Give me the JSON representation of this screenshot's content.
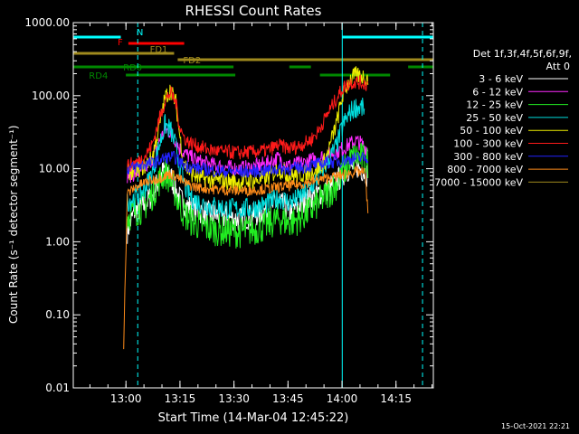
{
  "chart_data": {
    "type": "line",
    "title": "RHESSI Count Rates",
    "xlabel": "Start Time (14-Mar-04 12:45:22)",
    "ylabel": "Count Rate (s⁻¹ detector segment⁻¹)",
    "yscale": "log",
    "ylim": [
      0.01,
      1000
    ],
    "xlim_minutes_after_start": [
      0,
      100
    ],
    "x_tick_labels": [
      "13:00",
      "13:15",
      "13:30",
      "13:45",
      "14:00",
      "14:15"
    ],
    "x_tick_minutes_after_start": [
      14.63,
      29.63,
      44.63,
      59.63,
      74.63,
      89.63
    ],
    "y_tick_labels": [
      "0.01",
      "0.10",
      "1.00",
      "10.00",
      "100.00",
      "1000.00"
    ],
    "y_tick_values": [
      0.01,
      0.1,
      1,
      10,
      100,
      1000
    ],
    "legend_title": "Det 1f,3f,4f,5f,6f,9f,",
    "legend_subtitle": "Att 0",
    "legend_position": "right",
    "timestamp": "15-Oct-2021 22:21",
    "annotations": [
      "N",
      "F",
      "FD1",
      "FD2",
      "RD0",
      "RD4"
    ],
    "x_sample_minutes": [
      0,
      1.5,
      3,
      5,
      7,
      10,
      12,
      14,
      15,
      17,
      18.5,
      20,
      22,
      24,
      25.5,
      27,
      28.5,
      29.5,
      30.5,
      31.5,
      33,
      35,
      38,
      42,
      46,
      50,
      54,
      57,
      60,
      62,
      64,
      66,
      68,
      70,
      73,
      75,
      77,
      78.5,
      80,
      81,
      82,
      83,
      85,
      87,
      88,
      90,
      93,
      96,
      100
    ],
    "series": [
      {
        "name": "3 - 6 keV",
        "color": "#ffffff",
        "start_min": 13.5,
        "end_min": 83,
        "values": [
          null,
          null,
          null,
          null,
          null,
          null,
          null,
          null,
          1.4,
          2.6,
          2.8,
          3.2,
          4.5,
          7.5,
          10,
          8,
          5,
          4,
          3.4,
          3.1,
          2.9,
          2.6,
          2.4,
          2.2,
          2.0,
          2.3,
          2.7,
          3.6,
          2.5,
          3.0,
          3.4,
          4.0,
          4.5,
          5.0,
          6.5,
          8.5,
          10.5,
          11,
          10,
          9,
          8,
          null,
          null,
          null,
          null,
          null,
          null,
          null,
          null
        ]
      },
      {
        "name": "6 - 12 keV",
        "color": "#ff2bff",
        "start_min": 13.5,
        "end_min": 83,
        "values": [
          null,
          null,
          null,
          null,
          null,
          null,
          null,
          null,
          8,
          8.5,
          9,
          10,
          14,
          24,
          34,
          32,
          24,
          19,
          17,
          15.5,
          14,
          12.5,
          11.5,
          10.5,
          10,
          10.5,
          12,
          14,
          11,
          11.5,
          12,
          13,
          14,
          15,
          17,
          19,
          22,
          24,
          22,
          20,
          18,
          null,
          null,
          null,
          null,
          null,
          null,
          null,
          null
        ]
      },
      {
        "name": "12 - 25 keV",
        "color": "#22ee22",
        "start_min": 13.5,
        "end_min": 83,
        "values": [
          null,
          null,
          null,
          null,
          null,
          null,
          null,
          null,
          2.2,
          2.6,
          2.8,
          3.2,
          4.5,
          7,
          9,
          7,
          4.5,
          3.2,
          2.6,
          2.2,
          1.9,
          1.7,
          1.5,
          1.4,
          1.35,
          1.45,
          1.7,
          2.1,
          1.8,
          2.0,
          2.3,
          2.7,
          3.4,
          4.2,
          6,
          9,
          13,
          15,
          14,
          13,
          12,
          null,
          null,
          null,
          null,
          null,
          null,
          null,
          null
        ]
      },
      {
        "name": "25 - 50 keV",
        "color": "#00dddd",
        "start_min": 13.5,
        "end_min": 83,
        "values": [
          null,
          null,
          null,
          null,
          null,
          null,
          null,
          null,
          3.5,
          4,
          4.5,
          5.5,
          9,
          22,
          40,
          34,
          20,
          11,
          7,
          5,
          4,
          3.4,
          3.1,
          2.9,
          2.8,
          2.9,
          3.3,
          4,
          3.5,
          3.8,
          4.5,
          5.5,
          7.5,
          11,
          20,
          40,
          60,
          70,
          68,
          64,
          null,
          null,
          null,
          null,
          null,
          null,
          null,
          null,
          null
        ]
      },
      {
        "name": "50 - 100 keV",
        "color": "#eeee00",
        "start_min": 13.5,
        "end_min": 83,
        "values": [
          null,
          null,
          null,
          null,
          null,
          null,
          null,
          null,
          9,
          9.5,
          10,
          11,
          15,
          40,
          95,
          120,
          80,
          30,
          14,
          10,
          8.5,
          7.5,
          7,
          6.8,
          6.5,
          6.8,
          7.5,
          10,
          8,
          8.2,
          8.5,
          9,
          10,
          13,
          40,
          110,
          170,
          190,
          185,
          180,
          170,
          null,
          null,
          null,
          null,
          null,
          null,
          null,
          null
        ]
      },
      {
        "name": "100 - 300 keV",
        "color": "#ff1a1a",
        "start_min": 13.5,
        "end_min": 83,
        "values": [
          null,
          null,
          null,
          null,
          null,
          null,
          null,
          null,
          11,
          12,
          13,
          15,
          22,
          50,
          85,
          110,
          80,
          40,
          28,
          24,
          22,
          20,
          18,
          17,
          16.5,
          17,
          18,
          21,
          19,
          20,
          22,
          25,
          32,
          50,
          90,
          130,
          150,
          155,
          150,
          145,
          140,
          null,
          null,
          null,
          null,
          null,
          null,
          null,
          null
        ]
      },
      {
        "name": "300 - 800 keV",
        "color": "#2222ff",
        "start_min": 13.5,
        "end_min": 83,
        "values": [
          null,
          null,
          null,
          null,
          null,
          null,
          null,
          null,
          10,
          10.5,
          11,
          11.5,
          12,
          13,
          14,
          14.5,
          14,
          12.5,
          11.5,
          11,
          10.5,
          10,
          9.5,
          9.2,
          9,
          9.2,
          9.5,
          10,
          10,
          10.2,
          10.5,
          11,
          11.5,
          12,
          12.5,
          13,
          13.5,
          14,
          14,
          14,
          14,
          null,
          null,
          null,
          null,
          null,
          null,
          null,
          null
        ]
      },
      {
        "name": "800 - 7000 keV",
        "color": "#ff8c1a",
        "start_min": 12.8,
        "end_min": 83,
        "values": [
          null,
          null,
          null,
          null,
          null,
          null,
          null,
          0.04,
          4.5,
          5.5,
          6,
          6.5,
          7,
          7.5,
          8,
          8.5,
          8,
          7.2,
          6.6,
          6.2,
          5.8,
          5.5,
          5.3,
          5.1,
          5,
          5.1,
          5.3,
          5.6,
          5.8,
          6,
          6.3,
          6.6,
          7,
          7.3,
          7.8,
          8.3,
          8.8,
          9,
          9,
          8.8,
          2,
          null,
          null,
          null,
          null,
          null,
          null,
          null,
          null
        ]
      },
      {
        "name": "7000 - 15000 keV",
        "color": "#a08a1e",
        "start_min": null,
        "end_min": null,
        "values": []
      }
    ],
    "attenuator_bars": [
      {
        "label": "N",
        "color": "#00ffff",
        "segments": [
          [
            0,
            13.2
          ],
          [
            74.7,
            100
          ]
        ]
      },
      {
        "label": "F",
        "color": "#ff0000",
        "segments": [
          [
            15.3,
            30.8
          ]
        ]
      },
      {
        "label": "FD1",
        "color": "#a08a1e",
        "segments": [
          [
            0,
            28
          ]
        ]
      },
      {
        "label": "FD2",
        "color": "#a08a1e",
        "segments": [
          [
            29,
            100
          ]
        ]
      },
      {
        "label": "RD0",
        "color": "#008800",
        "segments": [
          [
            0,
            44.5
          ],
          [
            60,
            66
          ],
          [
            93,
            100
          ]
        ]
      },
      {
        "label": "RD4",
        "color": "#008800",
        "segments": [
          [
            14.6,
            45
          ],
          [
            68.5,
            88
          ]
        ]
      }
    ],
    "vertical_markers": [
      {
        "minute": 17.9,
        "color": "#00ffff",
        "style": "dashed"
      },
      {
        "minute": 74.7,
        "color": "#00ffff",
        "style": "solid"
      },
      {
        "minute": 97.0,
        "color": "#00ffff",
        "style": "dashed"
      },
      {
        "minute": 0.0,
        "color": "#00ffff",
        "style": "solid"
      }
    ],
    "grid": false
  }
}
